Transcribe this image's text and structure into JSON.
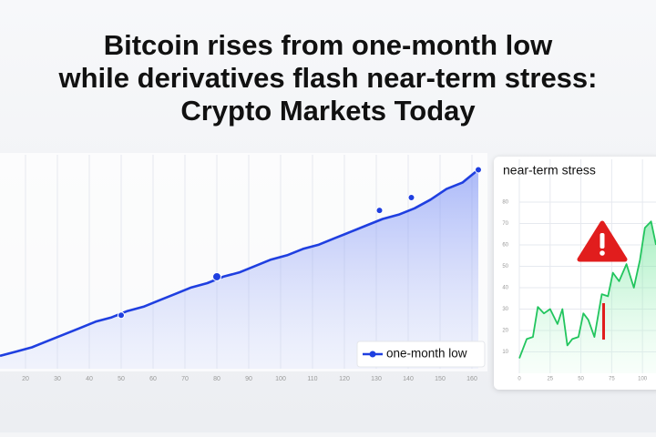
{
  "headline": [
    "Bitcoin rises from one-month low",
    "while derivatives flash near-term stress:",
    "Crypto Markets Today"
  ],
  "chart_data": [
    {
      "type": "line",
      "series": [
        {
          "name": "one-month low",
          "color": "#1f3fe0",
          "x": [
            12,
            17,
            22,
            27,
            32,
            37,
            42,
            47,
            52,
            57,
            62,
            67,
            72,
            77,
            82,
            87,
            92,
            97,
            102,
            107,
            112,
            117,
            122,
            127,
            132,
            137,
            142,
            147,
            152,
            157,
            162
          ],
          "values": [
            6,
            8,
            10,
            13,
            16,
            19,
            22,
            24,
            27,
            29,
            32,
            35,
            38,
            40,
            43,
            45,
            48,
            51,
            53,
            56,
            58,
            61,
            64,
            67,
            70,
            72,
            75,
            79,
            84,
            87,
            93
          ]
        }
      ],
      "highlights": {
        "x": [
          50,
          80,
          131,
          141,
          162
        ],
        "values": [
          25,
          43,
          74,
          80,
          93
        ]
      },
      "xlim": [
        12,
        162
      ],
      "xticks": [
        20,
        30,
        40,
        50,
        60,
        70,
        80,
        90,
        100,
        110,
        120,
        130,
        140,
        150,
        160
      ],
      "ylim": [
        0,
        100
      ],
      "grid": true
    },
    {
      "type": "line",
      "title": "near-term stress",
      "series": [
        {
          "name": null,
          "color": "#22c55e",
          "x": [
            0,
            6,
            11,
            15,
            20,
            25,
            31,
            35,
            39,
            43,
            48,
            52,
            56,
            61,
            67,
            72,
            76,
            81,
            87,
            93,
            98,
            102,
            107,
            111
          ],
          "values": [
            7,
            16,
            17,
            31,
            28,
            30,
            23,
            30,
            13,
            16,
            17,
            28,
            25,
            17,
            37,
            36,
            47,
            43,
            51,
            40,
            53,
            68,
            71,
            60
          ]
        }
      ],
      "xlim": [
        0,
        111
      ],
      "xticks": [
        0,
        25,
        50,
        75,
        100
      ],
      "ylim": [
        0,
        100
      ],
      "yticks": [
        10,
        20,
        30,
        40,
        50,
        60,
        70,
        80
      ],
      "grid": true
    }
  ]
}
